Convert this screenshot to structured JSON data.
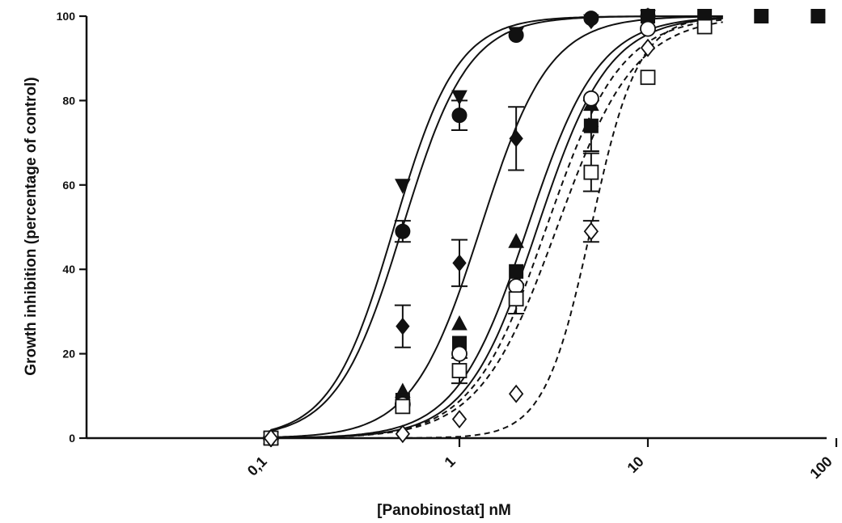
{
  "chart_data": {
    "type": "line",
    "title": "",
    "xlabel": "[Panobinostat] nM",
    "ylabel": "Growth inhibition (percentage of control)",
    "x_scale": "log",
    "xlim": [
      0.1,
      100
    ],
    "ylim": [
      0,
      100
    ],
    "x_ticks": [
      0.1,
      1,
      10,
      100
    ],
    "x_tick_labels": [
      "0,1",
      "1",
      "10",
      "100"
    ],
    "y_ticks": [
      0,
      20,
      40,
      60,
      80,
      100
    ],
    "y_tick_labels": [
      "0",
      "20",
      "40",
      "60",
      "80",
      "100"
    ],
    "grid": false,
    "legend": "none",
    "series": [
      {
        "marker": "triangle-down",
        "filled": true,
        "line": "solid",
        "ec50": 0.45,
        "hill": 2.6,
        "x": [
          0.1,
          0.5,
          1,
          2,
          5,
          10
        ],
        "y": [
          0,
          60,
          81,
          96,
          99,
          100
        ]
      },
      {
        "marker": "circle",
        "filled": true,
        "line": "solid",
        "ec50": 0.5,
        "hill": 2.5,
        "x": [
          0.1,
          0.5,
          1,
          2,
          5,
          10
        ],
        "y": [
          0,
          49,
          76.5,
          95.5,
          99.5,
          100
        ],
        "err": [
          0,
          2.5,
          3.5,
          0,
          0,
          0
        ]
      },
      {
        "marker": "diamond",
        "filled": true,
        "line": "solid",
        "ec50": 1.3,
        "hill": 2.4,
        "x": [
          0.1,
          0.5,
          1,
          2,
          5,
          10
        ],
        "y": [
          0,
          26.5,
          41.5,
          71,
          99,
          100
        ],
        "err": [
          0,
          5,
          5.5,
          7.5,
          0,
          0
        ]
      },
      {
        "marker": "triangle-up",
        "filled": true,
        "line": "solid",
        "ec50": 2.3,
        "hill": 2.3,
        "x": [
          0.1,
          0.5,
          1,
          2,
          5,
          10
        ],
        "y": [
          0,
          11,
          27,
          46.5,
          79,
          98
        ]
      },
      {
        "marker": "square",
        "filled": true,
        "line": "solid",
        "ec50": 2.6,
        "hill": 2.3,
        "x": [
          0.1,
          0.5,
          1,
          2,
          5,
          10,
          20,
          40,
          80
        ],
        "y": [
          0,
          9,
          22.5,
          39.5,
          74,
          100,
          100,
          100,
          100
        ],
        "err": [
          0,
          0,
          0,
          0,
          6,
          0,
          0,
          0,
          0
        ]
      },
      {
        "marker": "circle",
        "filled": false,
        "line": "dashed",
        "ec50": 2.9,
        "hill": 2.2,
        "x": [
          0.1,
          0.5,
          1,
          2,
          5,
          10
        ],
        "y": [
          0,
          8,
          20,
          36,
          80.5,
          97
        ]
      },
      {
        "marker": "square",
        "filled": false,
        "line": "dashed",
        "ec50": 3.3,
        "hill": 2.1,
        "x": [
          0.1,
          0.5,
          1,
          2,
          5,
          10,
          20
        ],
        "y": [
          0,
          7.5,
          16,
          33,
          63,
          85.5,
          97.5
        ],
        "err": [
          0,
          0,
          3,
          3.5,
          4.5,
          0,
          0
        ]
      },
      {
        "marker": "diamond",
        "filled": false,
        "line": "dashed",
        "ec50": 5.0,
        "hill": 3.5,
        "x": [
          0.1,
          0.5,
          1,
          2,
          5,
          10
        ],
        "y": [
          0,
          1,
          4.5,
          10.5,
          49,
          92.5
        ],
        "err": [
          0,
          0,
          0,
          0,
          2.5,
          0
        ]
      }
    ]
  }
}
